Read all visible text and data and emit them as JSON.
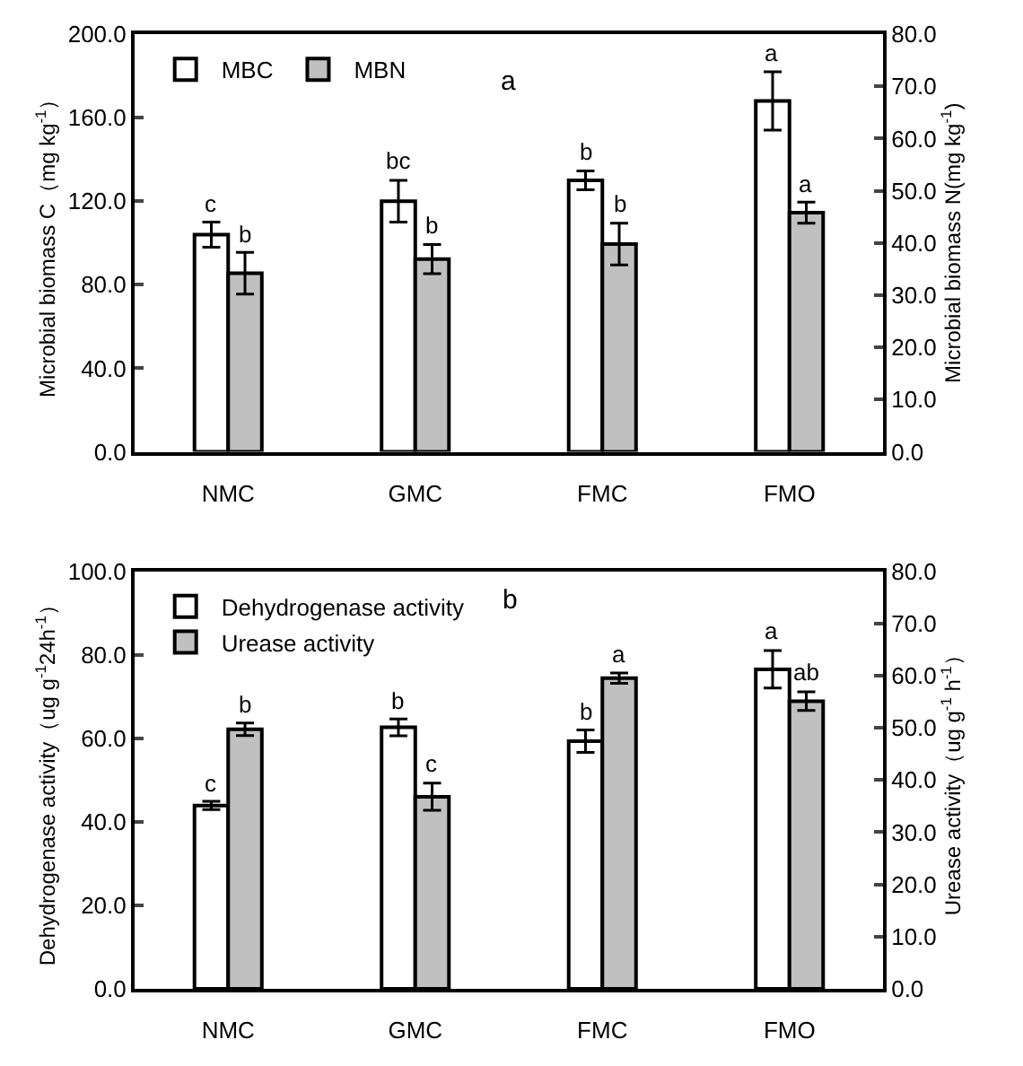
{
  "chart_data": [
    {
      "type": "bar",
      "annotations": [
        "a"
      ],
      "categories": [
        "NMC",
        "GMC",
        "FMC",
        "FMO"
      ],
      "ylabel": "Microbial biomass C（mg kg$^{-1}$）",
      "y2label": "Microbial biomass N(mg kg$^{-1}$)",
      "legend": "top left",
      "ylim": [
        0,
        200
      ],
      "yticks": [
        {
          "value": 0,
          "label": "0.0"
        },
        {
          "value": 40,
          "label": "40.0"
        },
        {
          "value": 80,
          "label": "80.0"
        },
        {
          "value": 120,
          "label": "120.0"
        },
        {
          "value": 160,
          "label": "160.0"
        },
        {
          "value": 200,
          "label": "200.0"
        }
      ],
      "y2lim": [
        0,
        80
      ],
      "y2ticks": [
        {
          "value": 0,
          "label": "0.0"
        },
        {
          "value": 10,
          "label": "10.0"
        },
        {
          "value": 20,
          "label": "20.0"
        },
        {
          "value": 30,
          "label": "30.0"
        },
        {
          "value": 40,
          "label": "40.0"
        },
        {
          "value": 50,
          "label": "50.0"
        },
        {
          "value": 60,
          "label": "60.0"
        },
        {
          "value": 70,
          "label": "70.0"
        },
        {
          "value": 80,
          "label": "80.0"
        }
      ],
      "series": [
        {
          "name": "MBC",
          "color": "#ffffff",
          "values": [
            104,
            120,
            130,
            168
          ],
          "errors": [
            6,
            10,
            4.5,
            14
          ],
          "value_labels": [
            "c",
            "bc",
            "b",
            "a"
          ]
        },
        {
          "name": "MBN",
          "color": "#c0c0c0",
          "axis": "y2",
          "values": [
            34.2,
            36.9,
            39.8,
            45.8
          ],
          "errors": [
            4,
            2.8,
            4,
            2
          ],
          "value_labels": [
            "b",
            "b",
            "b",
            "a"
          ]
        }
      ]
    },
    {
      "type": "bar",
      "annotations": [
        "b"
      ],
      "categories": [
        "NMC",
        "GMC",
        "FMC",
        "FMO"
      ],
      "ylabel": "Dehydrogenase activity（ug g$^{-1}$24h$^{-1}$）",
      "y2label": "Urease activity（ug g$^{-1}$ h$^{-1}$）",
      "legend": "top left",
      "ylim": [
        0,
        100
      ],
      "yticks": [
        {
          "value": 0,
          "label": "0.0"
        },
        {
          "value": 20,
          "label": "20.0"
        },
        {
          "value": 40,
          "label": "40.0"
        },
        {
          "value": 60,
          "label": "60.0"
        },
        {
          "value": 80,
          "label": "80.0"
        },
        {
          "value": 100,
          "label": "100.0"
        }
      ],
      "y2lim": [
        0,
        80
      ],
      "y2ticks": [
        {
          "value": 0,
          "label": "0.0"
        },
        {
          "value": 10,
          "label": "10.0"
        },
        {
          "value": 20,
          "label": "20.0"
        },
        {
          "value": 30,
          "label": "30.0"
        },
        {
          "value": 40,
          "label": "40.0"
        },
        {
          "value": 50,
          "label": "50.0"
        },
        {
          "value": 60,
          "label": "60.0"
        },
        {
          "value": 70,
          "label": "70.0"
        },
        {
          "value": 80,
          "label": "80.0"
        }
      ],
      "series": [
        {
          "name": "Dehydrogenase activity",
          "color": "#ffffff",
          "values": [
            43.9,
            62.6,
            59.3,
            76.5
          ],
          "errors": [
            1,
            2,
            2.7,
            4.5
          ],
          "value_labels": [
            "c",
            "b",
            "b",
            "a"
          ]
        },
        {
          "name": "Urease activity",
          "color": "#c0c0c0",
          "axis": "y2",
          "values": [
            49.7,
            36.8,
            59.5,
            55.1
          ],
          "errors": [
            1.2,
            2.6,
            1,
            1.8
          ],
          "value_labels": [
            "b",
            "c",
            "a",
            "ab"
          ]
        }
      ]
    }
  ]
}
